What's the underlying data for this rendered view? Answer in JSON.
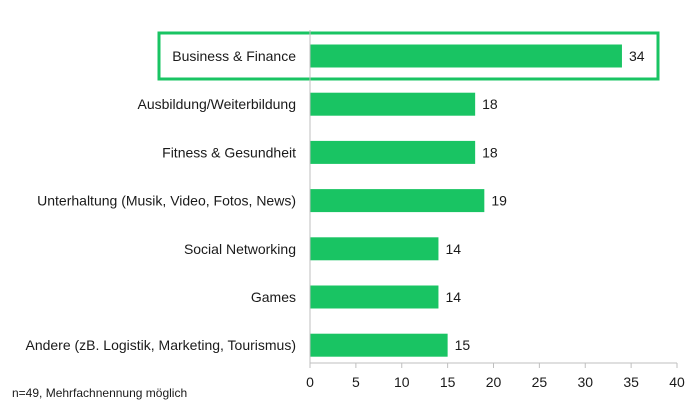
{
  "chart_data": {
    "type": "bar",
    "orientation": "horizontal",
    "categories": [
      "Business & Finance",
      "Ausbildung/Weiterbildung",
      "Fitness & Gesundheit",
      "Unterhaltung (Musik, Video, Fotos, News)",
      "Social Networking",
      "Games",
      "Andere (zB. Logistik, Marketing, Tourismus)"
    ],
    "values": [
      34,
      18,
      18,
      19,
      14,
      14,
      15
    ],
    "xlim": [
      0,
      40
    ],
    "xticks": [
      0,
      5,
      10,
      15,
      20,
      25,
      30,
      35,
      40
    ],
    "highlighted_category": "Business & Finance",
    "grid": false,
    "bar_color": "#19c463",
    "highlight_color": "#19c463"
  },
  "footnote": "n=49, Mehrfachnennung möglich"
}
